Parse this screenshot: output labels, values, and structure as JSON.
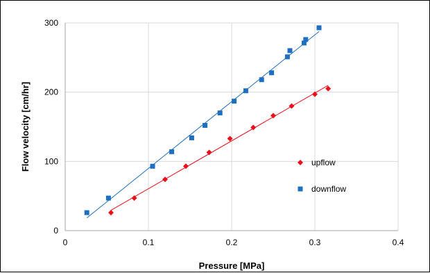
{
  "chart_data": {
    "type": "scatter",
    "title": "",
    "xlabel": "Pressure [MPa]",
    "ylabel": "Flow velocity [cm/hr]",
    "xlim": [
      0,
      0.4
    ],
    "ylim": [
      0,
      300
    ],
    "xticks": [
      0,
      0.1,
      0.2,
      0.3,
      0.4
    ],
    "xtick_labels": [
      "0",
      "0.1",
      "0.2",
      "0.3",
      "0.4"
    ],
    "yticks": [
      0,
      100,
      200,
      300
    ],
    "ytick_labels": [
      "0",
      "100",
      "200",
      "300"
    ],
    "grid": true,
    "legend_position": "right-center",
    "series": [
      {
        "name": "upflow",
        "marker": "diamond",
        "color": "#e8101a",
        "trendline": true,
        "x": [
          0.055,
          0.083,
          0.12,
          0.145,
          0.173,
          0.198,
          0.226,
          0.25,
          0.272,
          0.3,
          0.316
        ],
        "y": [
          26,
          47,
          74,
          93,
          113,
          133,
          149,
          166,
          180,
          197,
          205
        ]
      },
      {
        "name": "downflow",
        "marker": "square",
        "color": "#1f6fc0",
        "trendline": true,
        "x": [
          0.026,
          0.052,
          0.105,
          0.128,
          0.152,
          0.168,
          0.186,
          0.203,
          0.217,
          0.236,
          0.248,
          0.267,
          0.27,
          0.287,
          0.289,
          0.305
        ],
        "y": [
          26,
          47,
          93,
          114,
          134,
          152,
          170,
          187,
          202,
          218,
          228,
          251,
          260,
          271,
          276,
          293
        ]
      }
    ]
  }
}
